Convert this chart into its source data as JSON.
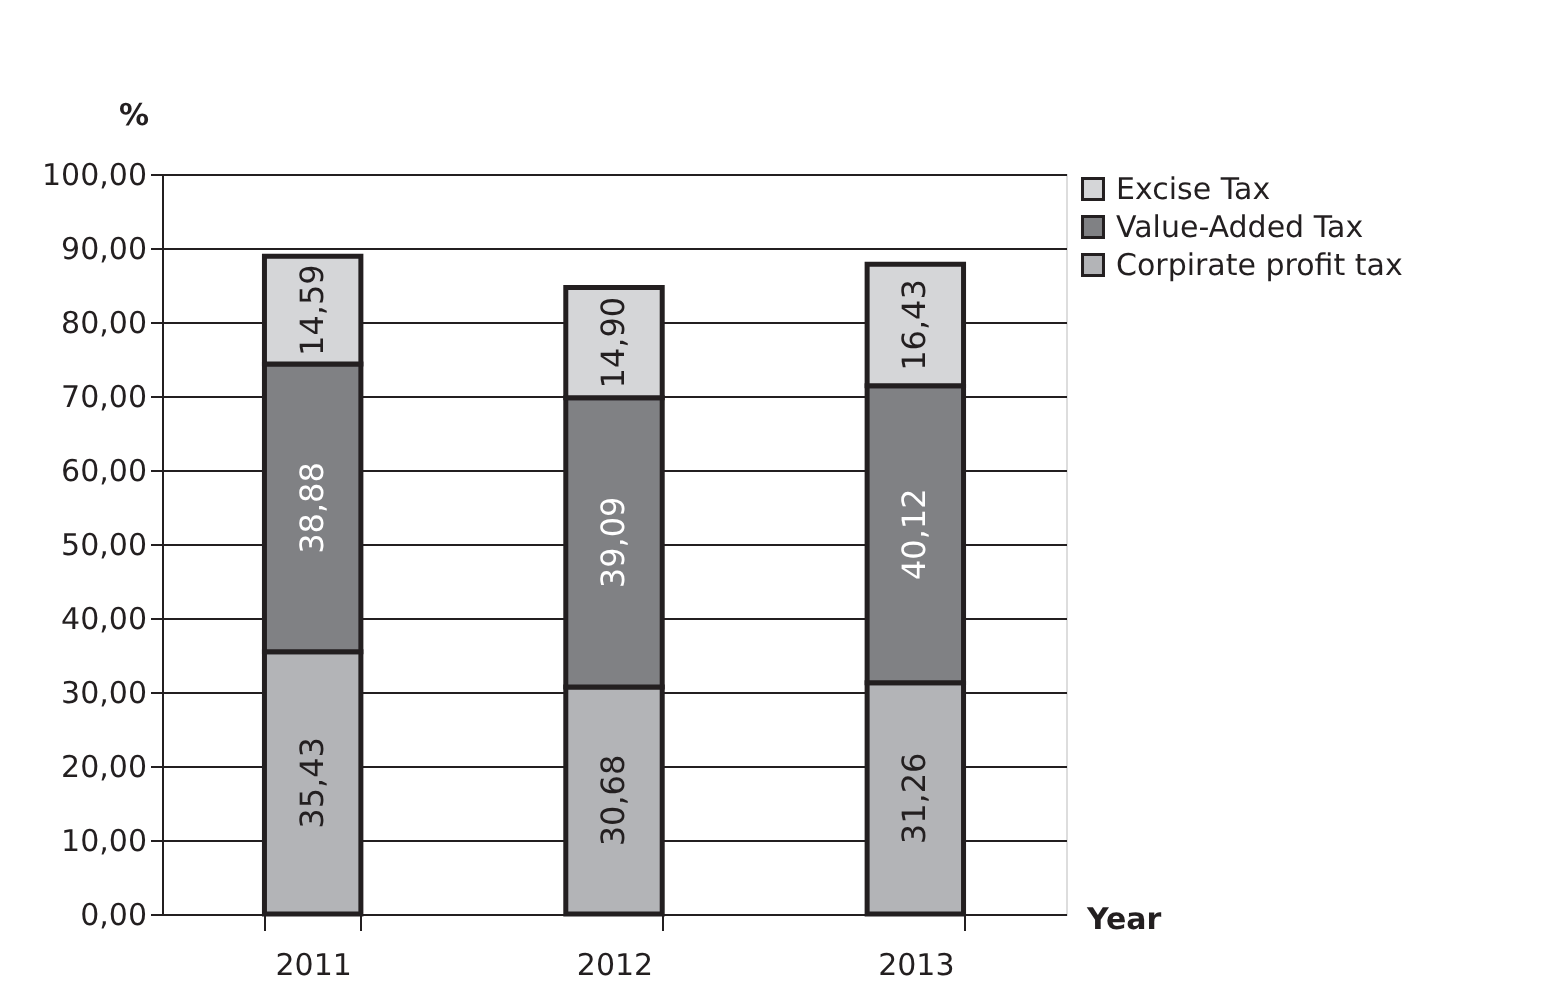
{
  "chart_data": {
    "type": "bar",
    "stacked": true,
    "xlabel": "Year",
    "ylabel": "%",
    "categories": [
      "2011",
      "2012",
      "2013"
    ],
    "series": [
      {
        "name": "Corpirate profit tax",
        "color": "#b3b4b7",
        "values": [
          35.43,
          30.68,
          31.26
        ],
        "value_labels": [
          "35,43",
          "30,68",
          "31,26"
        ]
      },
      {
        "name": "Value-Added Tax",
        "color": "#808184",
        "values": [
          38.88,
          39.09,
          40.12
        ],
        "value_labels": [
          "38,88",
          "39,09",
          "40,12"
        ]
      },
      {
        "name": "Excise Tax",
        "color": "#d5d6d8",
        "values": [
          14.59,
          14.9,
          16.43
        ],
        "value_labels": [
          "14,59",
          "14,90",
          "16,43"
        ]
      }
    ],
    "ylim": [
      0,
      100
    ],
    "yticks": [
      {
        "value": 0,
        "label": "0,00"
      },
      {
        "value": 10,
        "label": "10,00"
      },
      {
        "value": 20,
        "label": "20,00"
      },
      {
        "value": 30,
        "label": "30,00"
      },
      {
        "value": 40,
        "label": "40,00"
      },
      {
        "value": 50,
        "label": "50,00"
      },
      {
        "value": 60,
        "label": "60,00"
      },
      {
        "value": 70,
        "label": "70,00"
      },
      {
        "value": 80,
        "label": "80,00"
      },
      {
        "value": 90,
        "label": "90,00"
      },
      {
        "value": 100,
        "label": "100,00"
      }
    ],
    "grid": "y",
    "legend": "right"
  }
}
